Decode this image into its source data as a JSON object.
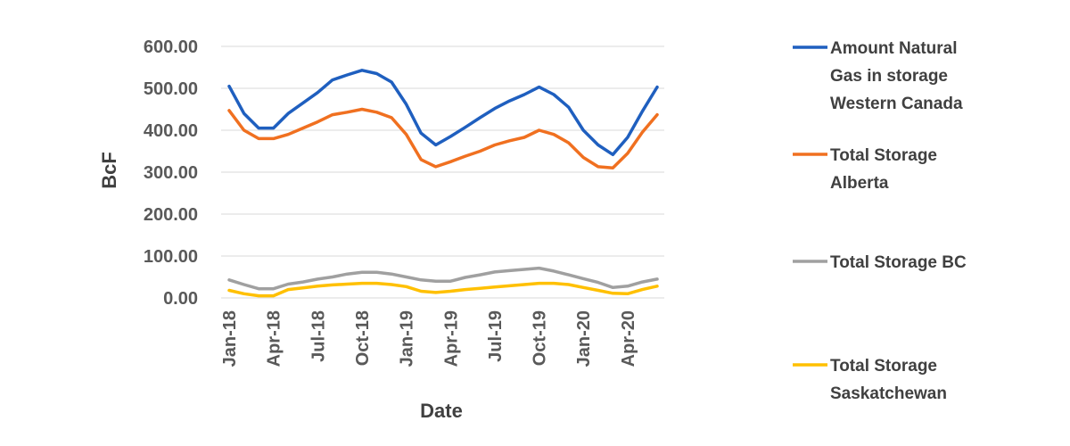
{
  "chart_data": {
    "type": "line",
    "title": "",
    "xlabel": "Date",
    "ylabel": "BcF",
    "ylim": [
      0,
      600
    ],
    "y_ticks": [
      "0.00",
      "100.00",
      "200.00",
      "300.00",
      "400.00",
      "500.00",
      "600.00"
    ],
    "x": [
      "Jan-18",
      "Feb-18",
      "Mar-18",
      "Apr-18",
      "May-18",
      "Jun-18",
      "Jul-18",
      "Aug-18",
      "Sep-18",
      "Oct-18",
      "Nov-18",
      "Dec-18",
      "Jan-19",
      "Feb-19",
      "Mar-19",
      "Apr-19",
      "May-19",
      "Jun-19",
      "Jul-19",
      "Aug-19",
      "Sep-19",
      "Oct-19",
      "Nov-19",
      "Dec-19",
      "Jan-20",
      "Feb-20",
      "Mar-20",
      "Apr-20",
      "May-20",
      "Jun-20"
    ],
    "x_tick_labels": [
      "Jan-18",
      "Apr-18",
      "Jul-18",
      "Oct-18",
      "Jan-19",
      "Apr-19",
      "Jul-19",
      "Oct-19",
      "Jan-20",
      "Apr-20"
    ],
    "grid": true,
    "legend_position": "right",
    "series": [
      {
        "name": "Amount Natural Gas in storage Western Canada",
        "legend_lines": [
          "Amount Natural",
          "Gas in storage",
          "Western Canada"
        ],
        "color": "#1f5fbf",
        "values": [
          505,
          440,
          405,
          405,
          440,
          465,
          490,
          520,
          532,
          543,
          535,
          515,
          462,
          393,
          365,
          385,
          407,
          430,
          452,
          470,
          485,
          503,
          485,
          455,
          400,
          365,
          342,
          383,
          445,
          503
        ]
      },
      {
        "name": "Total Storage Alberta",
        "legend_lines": [
          "Total Storage",
          "Alberta"
        ],
        "color": "#f07020",
        "values": [
          447,
          400,
          380,
          380,
          390,
          405,
          420,
          437,
          443,
          450,
          443,
          430,
          390,
          330,
          313,
          325,
          338,
          350,
          365,
          375,
          383,
          400,
          390,
          370,
          335,
          313,
          310,
          345,
          395,
          437
        ]
      },
      {
        "name": "Total Storage BC",
        "legend_lines": [
          "Total Storage BC"
        ],
        "color": "#a0a0a0",
        "values": [
          43,
          32,
          22,
          22,
          33,
          38,
          45,
          50,
          57,
          61,
          61,
          57,
          50,
          43,
          40,
          40,
          49,
          55,
          62,
          65,
          68,
          71,
          64,
          55,
          46,
          37,
          25,
          28,
          38,
          45
        ]
      },
      {
        "name": "Total Storage Saskatchewan",
        "legend_lines": [
          "Total Storage",
          "Saskatchewan"
        ],
        "color": "#ffc000",
        "values": [
          18,
          10,
          5,
          5,
          20,
          24,
          28,
          31,
          33,
          35,
          35,
          32,
          27,
          16,
          13,
          16,
          20,
          23,
          26,
          29,
          32,
          35,
          35,
          32,
          25,
          18,
          11,
          10,
          20,
          28
        ]
      }
    ]
  }
}
